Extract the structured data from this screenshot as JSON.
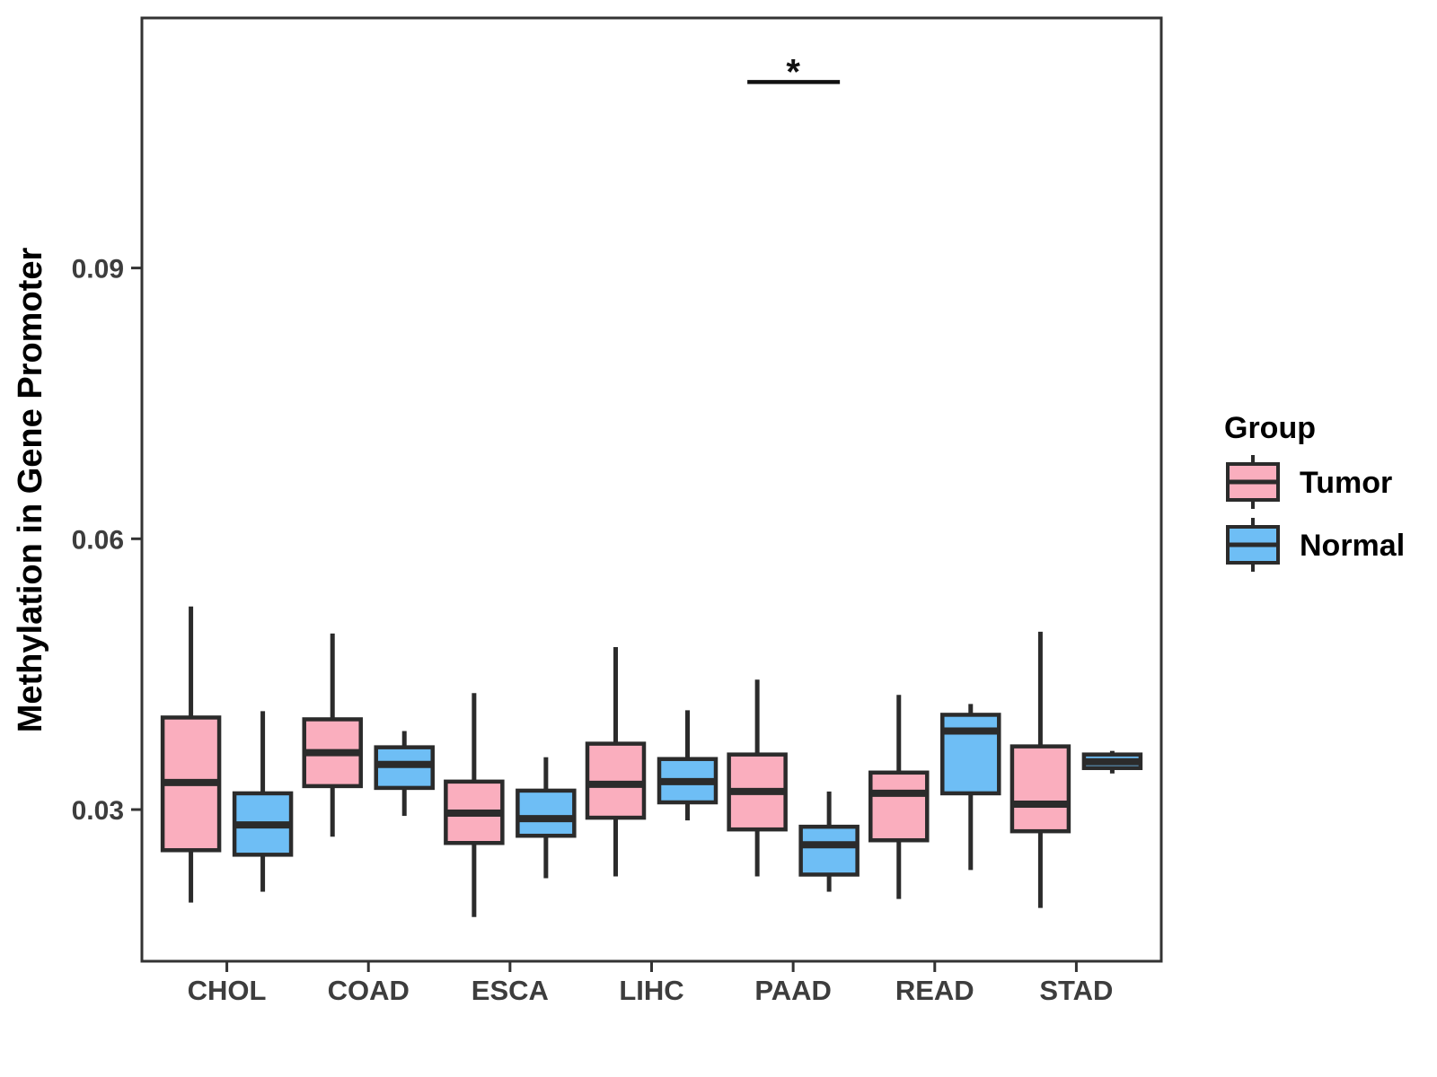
{
  "chart_data": {
    "type": "boxplot",
    "title": "",
    "xlabel": "",
    "ylabel": "Methylation in Gene Promoter",
    "categories": [
      "CHOL",
      "COAD",
      "ESCA",
      "LIHC",
      "PAAD",
      "READ",
      "STAD"
    ],
    "yticks": [
      0.03,
      0.06,
      0.09
    ],
    "ytick_labels": [
      "0.03",
      "0.06",
      "0.09"
    ],
    "ylim": [
      0.0132,
      0.1177
    ],
    "grid": "off",
    "legend_title": "Group",
    "legend_position": "right",
    "significance": {
      "category": "PAAD",
      "label": "*",
      "bar_value": 0.1106
    },
    "colors": {
      "outline": "#2B2B2B",
      "axis": "#333333",
      "tick_text": "#3D3D3D",
      "text": "#000000"
    },
    "groups": [
      {
        "name": "Tumor",
        "color": "#FAAEBE",
        "boxes": [
          {
            "category": "CHOL",
            "whisker_low": 0.0197,
            "q1": 0.0255,
            "median": 0.033,
            "q3": 0.0402,
            "whisker_high": 0.0525
          },
          {
            "category": "COAD",
            "whisker_low": 0.027,
            "q1": 0.0326,
            "median": 0.0363,
            "q3": 0.04,
            "whisker_high": 0.0495
          },
          {
            "category": "ESCA",
            "whisker_low": 0.0181,
            "q1": 0.0263,
            "median": 0.0296,
            "q3": 0.0331,
            "whisker_high": 0.0429
          },
          {
            "category": "LIHC",
            "whisker_low": 0.0226,
            "q1": 0.0291,
            "median": 0.0328,
            "q3": 0.0373,
            "whisker_high": 0.048
          },
          {
            "category": "PAAD",
            "whisker_low": 0.0226,
            "q1": 0.0278,
            "median": 0.032,
            "q3": 0.0361,
            "whisker_high": 0.0444
          },
          {
            "category": "READ",
            "whisker_low": 0.0201,
            "q1": 0.0266,
            "median": 0.0318,
            "q3": 0.0341,
            "whisker_high": 0.0427
          },
          {
            "category": "STAD",
            "whisker_low": 0.0191,
            "q1": 0.0276,
            "median": 0.0306,
            "q3": 0.037,
            "whisker_high": 0.0497
          }
        ]
      },
      {
        "name": "Normal",
        "color": "#6EBEF5",
        "boxes": [
          {
            "category": "CHOL",
            "whisker_low": 0.0209,
            "q1": 0.025,
            "median": 0.0283,
            "q3": 0.0318,
            "whisker_high": 0.0409
          },
          {
            "category": "COAD",
            "whisker_low": 0.0293,
            "q1": 0.0324,
            "median": 0.035,
            "q3": 0.0369,
            "whisker_high": 0.0387
          },
          {
            "category": "ESCA",
            "whisker_low": 0.0224,
            "q1": 0.0271,
            "median": 0.029,
            "q3": 0.0321,
            "whisker_high": 0.0358
          },
          {
            "category": "LIHC",
            "whisker_low": 0.0288,
            "q1": 0.0308,
            "median": 0.0331,
            "q3": 0.0356,
            "whisker_high": 0.041
          },
          {
            "category": "PAAD",
            "whisker_low": 0.0209,
            "q1": 0.0228,
            "median": 0.0261,
            "q3": 0.0281,
            "whisker_high": 0.032
          },
          {
            "category": "READ",
            "whisker_low": 0.0233,
            "q1": 0.0318,
            "median": 0.0387,
            "q3": 0.0405,
            "whisker_high": 0.0417
          },
          {
            "category": "STAD",
            "whisker_low": 0.034,
            "q1": 0.0346,
            "median": 0.0353,
            "q3": 0.0361,
            "whisker_high": 0.0365
          }
        ]
      }
    ]
  }
}
